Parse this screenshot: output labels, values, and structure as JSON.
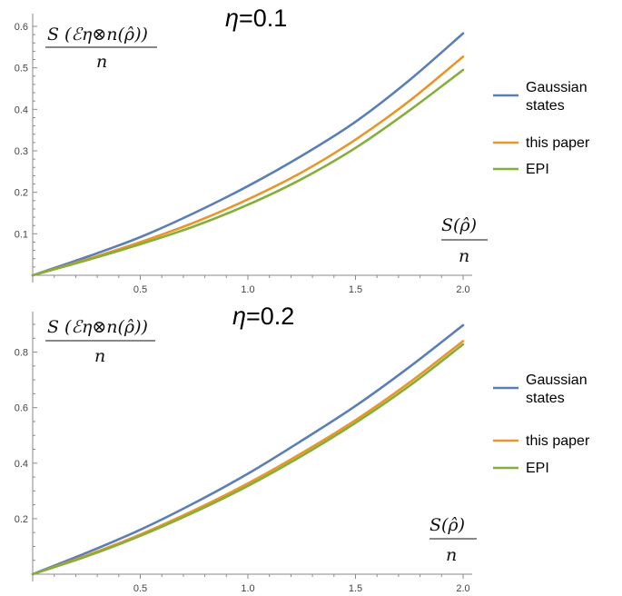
{
  "chart_data": [
    {
      "type": "line",
      "title": "η=0.1",
      "title_eta": "η",
      "title_value": "=0.1",
      "ylabel_num": "S (ℰη⊗n(ρ̂))",
      "ylabel_den": "n",
      "xlabel_num": "S(ρ̂)",
      "xlabel_den": "n",
      "xlim": [
        0,
        2.0
      ],
      "ylim": [
        0,
        0.6
      ],
      "xticks": [
        "0.5",
        "1.0",
        "1.5",
        "2.0"
      ],
      "yticks": [
        "0.1",
        "0.2",
        "0.3",
        "0.4",
        "0.5",
        "0.6"
      ],
      "x": [
        0,
        0.25,
        0.5,
        0.75,
        1.0,
        1.25,
        1.5,
        1.75,
        2.0
      ],
      "series": [
        {
          "name": "Gaussian states",
          "color": "#5B7FB4",
          "values": [
            0,
            0.044,
            0.092,
            0.15,
            0.215,
            0.288,
            0.37,
            0.47,
            0.583
          ]
        },
        {
          "name": "this paper",
          "color": "#E8962A",
          "values": [
            0,
            0.038,
            0.08,
            0.127,
            0.183,
            0.248,
            0.327,
            0.42,
            0.527
          ]
        },
        {
          "name": "EPI",
          "color": "#86AE3A",
          "values": [
            0,
            0.036,
            0.075,
            0.118,
            0.17,
            0.232,
            0.307,
            0.397,
            0.495
          ]
        }
      ]
    },
    {
      "type": "line",
      "title": "η=0.2",
      "title_eta": "η",
      "title_value": "=0.2",
      "ylabel_num": "S (ℰη⊗n(ρ̂))",
      "ylabel_den": "n",
      "xlabel_num": "S(ρ̂)",
      "xlabel_den": "n",
      "xlim": [
        0,
        2.0
      ],
      "ylim": [
        0,
        0.9
      ],
      "xticks": [
        "0.5",
        "1.0",
        "1.5",
        "2.0"
      ],
      "yticks": [
        "0.2",
        "0.4",
        "0.6",
        "0.8"
      ],
      "x": [
        0,
        0.25,
        0.5,
        0.75,
        1.0,
        1.25,
        1.5,
        1.75,
        2.0
      ],
      "series": [
        {
          "name": "Gaussian states",
          "color": "#5B7FB4",
          "values": [
            0,
            0.077,
            0.16,
            0.256,
            0.362,
            0.481,
            0.606,
            0.746,
            0.897
          ]
        },
        {
          "name": "this paper",
          "color": "#E8962A",
          "values": [
            0,
            0.067,
            0.143,
            0.23,
            0.327,
            0.436,
            0.555,
            0.69,
            0.84
          ]
        },
        {
          "name": "EPI",
          "color": "#86AE3A",
          "values": [
            0,
            0.064,
            0.138,
            0.223,
            0.318,
            0.426,
            0.545,
            0.678,
            0.828
          ]
        }
      ]
    }
  ],
  "legend": {
    "items": [
      {
        "line1": "Gaussian",
        "line2": "states",
        "color": "#5B7FB4"
      },
      {
        "line1": "this paper",
        "line2": "",
        "color": "#E8962A"
      },
      {
        "line1": "EPI",
        "line2": "",
        "color": "#86AE3A"
      }
    ]
  }
}
